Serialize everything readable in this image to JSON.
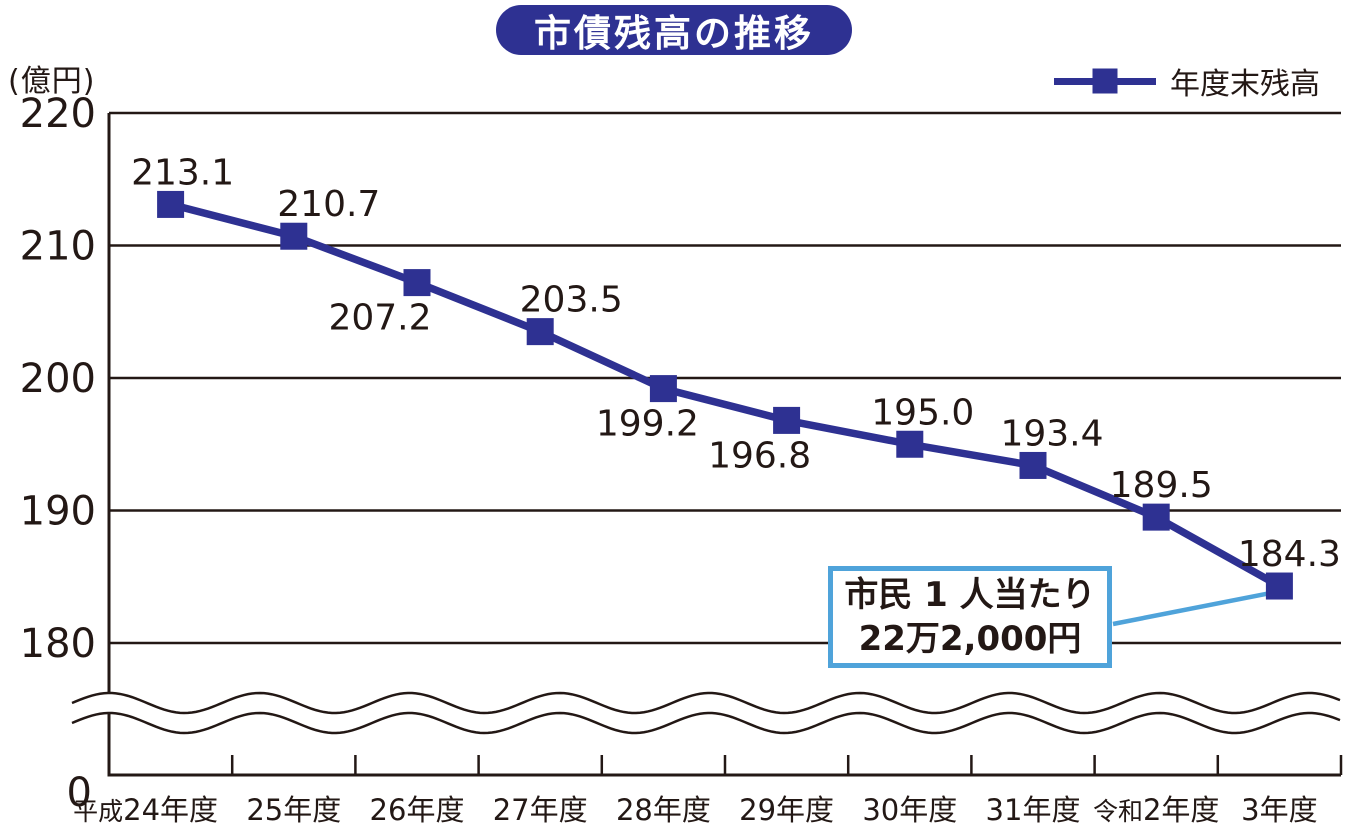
{
  "colors": {
    "navy": "#2e3192",
    "sky_blue": "#4fa3da",
    "ink": "#231815",
    "background": "#ffffff"
  },
  "chart_data": {
    "type": "line",
    "title": "市債残高の推移",
    "ylabel": "(億円)",
    "xlabel": "",
    "categories": [
      "平成24年度",
      "25年度",
      "26年度",
      "27年度",
      "28年度",
      "29年度",
      "30年度",
      "31年度",
      "令和2年度",
      "3年度"
    ],
    "series": [
      {
        "name": "年度末残高",
        "values": [
          213.1,
          210.7,
          207.2,
          203.5,
          199.2,
          196.8,
          195.0,
          193.4,
          189.5,
          184.3
        ]
      }
    ],
    "y_ticks": [
      220,
      210,
      200,
      190,
      180
    ],
    "y_origin_tick": 0,
    "ylim_display": [
      180,
      220
    ],
    "axis_break": true,
    "grid": "horizontal",
    "legend_position": "top-right",
    "marker": "square",
    "label_positions": [
      "above",
      "above",
      "below",
      "above",
      "below",
      "below",
      "above",
      "above",
      "above",
      "above"
    ],
    "annotation": {
      "text": [
        "市民 1 人当たり",
        "22万2,000円"
      ],
      "target_category": "3年度",
      "target_value": 184.3
    }
  }
}
